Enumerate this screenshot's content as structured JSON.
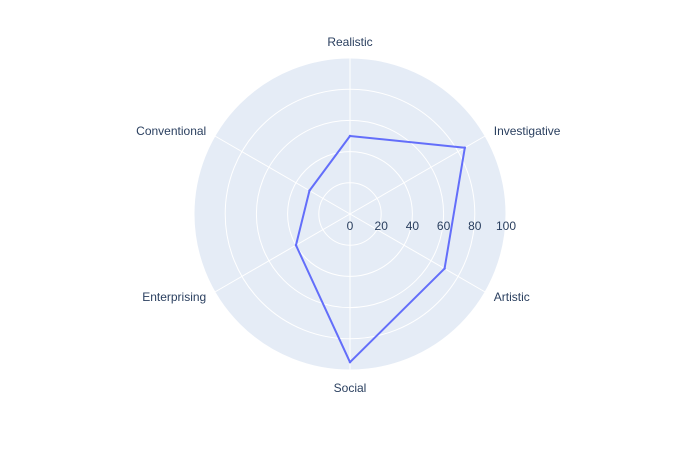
{
  "chart_data": {
    "type": "radar",
    "title": "",
    "categories": [
      "Realistic",
      "Investigative",
      "Artistic",
      "Social",
      "Enterprising",
      "Conventional"
    ],
    "series": [
      {
        "values": [
          50,
          85,
          70,
          95,
          40,
          30
        ]
      }
    ],
    "radial_range": [
      0,
      100
    ],
    "radial_ticks": [
      "0",
      "20",
      "40",
      "60",
      "80",
      "100"
    ],
    "grid": true,
    "legend": "none",
    "colors": {
      "background": "#e5ecf6",
      "grid": "#ffffff",
      "line": "#636efa",
      "text": "#2a3f5f"
    }
  }
}
